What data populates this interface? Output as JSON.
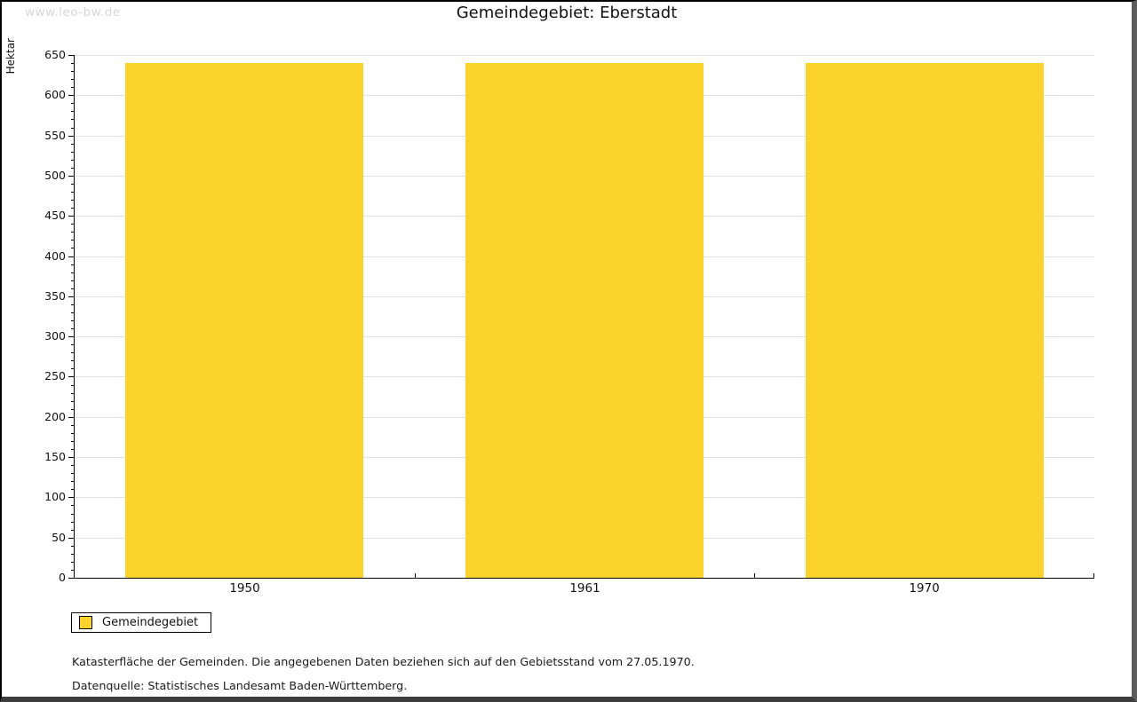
{
  "watermark": "www.leo-bw.de",
  "title": "Gemeindegebiet: Eberstadt",
  "legend": {
    "label": "Gemeindegebiet"
  },
  "notes": [
    "Katasterfläche der Gemeinden. Die angegebenen Daten beziehen sich auf den Gebietsstand vom 27.05.1970.",
    "Datenquelle: Statistisches Landesamt Baden-Württemberg."
  ],
  "colors": {
    "bar": "#fcd32d",
    "grid": "#e2e2e2",
    "axis": "#000000",
    "watermark": "#d6d6d6"
  },
  "chart_data": {
    "type": "bar",
    "title": "Gemeindegebiet: Eberstadt",
    "ylabel": "Hektar",
    "xlabel": "",
    "categories": [
      "1950",
      "1961",
      "1970"
    ],
    "series": [
      {
        "name": "Gemeindegebiet",
        "values": [
          640,
          640,
          640
        ]
      }
    ],
    "ylim": [
      0,
      650
    ],
    "y_tick_major": 50,
    "y_tick_minor": 10,
    "grid": "horizontal-major",
    "legend_position": "bottom-left",
    "bar_color": "#fcd32d"
  }
}
